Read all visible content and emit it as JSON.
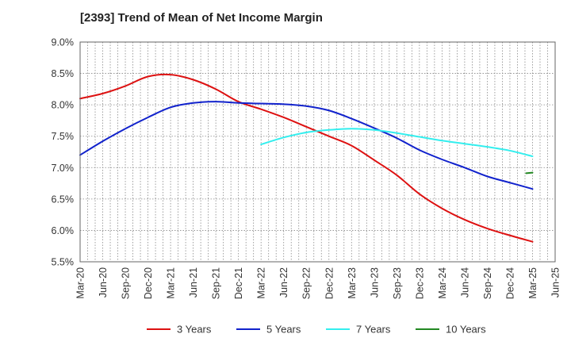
{
  "chart_data": {
    "type": "line",
    "title": "[2393]  Trend of Mean of Net Income Margin",
    "xlabel": "",
    "ylabel": "",
    "x": [
      "Mar-20",
      "Jun-20",
      "Sep-20",
      "Dec-20",
      "Mar-21",
      "Jun-21",
      "Sep-21",
      "Dec-21",
      "Mar-22",
      "Jun-22",
      "Sep-22",
      "Dec-22",
      "Mar-23",
      "Jun-23",
      "Sep-23",
      "Dec-23",
      "Mar-24",
      "Jun-24",
      "Sep-24",
      "Dec-24",
      "Mar-25",
      "Jun-25"
    ],
    "y_ticks": [
      "5.5%",
      "6.0%",
      "6.5%",
      "7.0%",
      "7.5%",
      "8.0%",
      "8.5%",
      "9.0%"
    ],
    "ylim": [
      5.5,
      9.0
    ],
    "grid": true,
    "legend_position": "bottom",
    "series": [
      {
        "name": "3 Years",
        "color": "#dd1111",
        "values": [
          8.1,
          8.18,
          8.3,
          8.45,
          8.48,
          8.4,
          8.25,
          8.05,
          7.93,
          7.8,
          7.65,
          7.5,
          7.35,
          7.12,
          6.88,
          6.58,
          6.35,
          6.17,
          6.03,
          5.92,
          5.82,
          null
        ]
      },
      {
        "name": "5 Years",
        "color": "#1122cc",
        "values": [
          7.2,
          7.42,
          7.62,
          7.8,
          7.96,
          8.03,
          8.05,
          8.03,
          8.02,
          8.01,
          7.98,
          7.91,
          7.78,
          7.63,
          7.47,
          7.28,
          7.13,
          7.0,
          6.86,
          6.76,
          6.66,
          null
        ]
      },
      {
        "name": "7 Years",
        "color": "#33eeee",
        "values": [
          null,
          null,
          null,
          null,
          null,
          null,
          null,
          null,
          7.37,
          7.48,
          7.56,
          7.6,
          7.62,
          7.6,
          7.55,
          7.49,
          7.43,
          7.38,
          7.33,
          7.27,
          7.18,
          null
        ]
      },
      {
        "name": "10 Years",
        "color": "#228822",
        "values": [
          null,
          null,
          null,
          null,
          null,
          null,
          null,
          null,
          null,
          null,
          null,
          null,
          null,
          null,
          null,
          null,
          null,
          null,
          null,
          null,
          6.92,
          null
        ],
        "segment_start": 6.91
      }
    ]
  }
}
